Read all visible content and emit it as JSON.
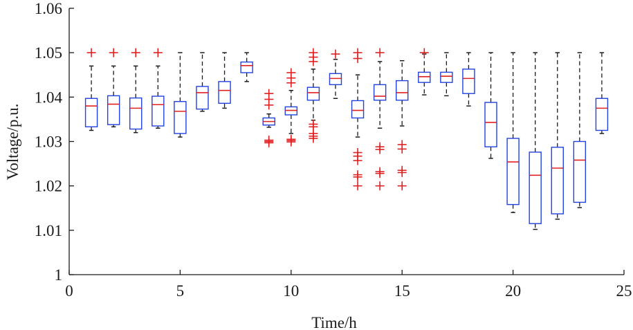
{
  "chart_data": {
    "type": "box",
    "title": "",
    "xlabel": "Time/h",
    "ylabel": "Voltage/p.u.",
    "xlim": [
      0,
      25
    ],
    "ylim": [
      1.0,
      1.06
    ],
    "xticks": [
      0,
      5,
      10,
      15,
      20,
      25
    ],
    "xtick_labels": [
      "0",
      "5",
      "10",
      "15",
      "20",
      "25"
    ],
    "yticks": [
      1.0,
      1.01,
      1.02,
      1.03,
      1.04,
      1.05,
      1.06
    ],
    "ytick_labels": [
      "1",
      "1.01",
      "1.02",
      "1.03",
      "1.04",
      "1.05",
      "1.06"
    ],
    "colors": {
      "box": "#2040e0",
      "median": "#e02020",
      "whisker": "#1a1a1a",
      "outlier": "#e02020",
      "axis": "#1a1a1a"
    },
    "boxes": [
      {
        "x": 1,
        "whisker_low": 1.0325,
        "q1": 1.0333,
        "median": 1.038,
        "q3": 1.0397,
        "whisker_high": 1.047,
        "outliers": [
          1.05
        ]
      },
      {
        "x": 2,
        "whisker_low": 1.0333,
        "q1": 1.0338,
        "median": 1.0384,
        "q3": 1.0403,
        "whisker_high": 1.047,
        "outliers": [
          1.05
        ]
      },
      {
        "x": 3,
        "whisker_low": 1.032,
        "q1": 1.0328,
        "median": 1.0375,
        "q3": 1.0398,
        "whisker_high": 1.047,
        "outliers": [
          1.05
        ]
      },
      {
        "x": 4,
        "whisker_low": 1.033,
        "q1": 1.0335,
        "median": 1.0383,
        "q3": 1.0402,
        "whisker_high": 1.047,
        "outliers": [
          1.05
        ]
      },
      {
        "x": 5,
        "whisker_low": 1.031,
        "q1": 1.0318,
        "median": 1.0368,
        "q3": 1.039,
        "whisker_high": 1.05,
        "outliers": []
      },
      {
        "x": 6,
        "whisker_low": 1.0368,
        "q1": 1.0373,
        "median": 1.041,
        "q3": 1.0424,
        "whisker_high": 1.05,
        "outliers": []
      },
      {
        "x": 7,
        "whisker_low": 1.0375,
        "q1": 1.0386,
        "median": 1.0415,
        "q3": 1.0435,
        "whisker_high": 1.05,
        "outliers": []
      },
      {
        "x": 8,
        "whisker_low": 1.0435,
        "q1": 1.0455,
        "median": 1.0471,
        "q3": 1.0479,
        "whisker_high": 1.05,
        "outliers": []
      },
      {
        "x": 9,
        "whisker_low": 1.0332,
        "q1": 1.0337,
        "median": 1.0345,
        "q3": 1.0353,
        "whisker_high": 1.0362,
        "outliers": [
          1.0408,
          1.0395,
          1.0382,
          1.0303,
          1.03,
          1.0297
        ]
      },
      {
        "x": 10,
        "whisker_low": 1.0318,
        "q1": 1.036,
        "median": 1.037,
        "q3": 1.0378,
        "whisker_high": 1.0415,
        "outliers": [
          1.0455,
          1.0443,
          1.0432,
          1.0305,
          1.0302,
          1.0299
        ]
      },
      {
        "x": 11,
        "whisker_low": 1.0348,
        "q1": 1.0393,
        "median": 1.041,
        "q3": 1.0422,
        "whisker_high": 1.0463,
        "outliers": [
          1.05,
          1.049,
          1.048,
          1.0339,
          1.0333,
          1.0318,
          1.0312,
          1.0307
        ]
      },
      {
        "x": 12,
        "whisker_low": 1.0397,
        "q1": 1.0428,
        "median": 1.0442,
        "q3": 1.0453,
        "whisker_high": 1.0485,
        "outliers": [
          1.0497
        ]
      },
      {
        "x": 13,
        "whisker_low": 1.031,
        "q1": 1.0353,
        "median": 1.037,
        "q3": 1.0392,
        "whisker_high": 1.045,
        "outliers": [
          1.05,
          1.0487,
          1.0275,
          1.0267,
          1.0257,
          1.0225,
          1.022,
          1.02
        ]
      },
      {
        "x": 14,
        "whisker_low": 1.033,
        "q1": 1.0393,
        "median": 1.0402,
        "q3": 1.0428,
        "whisker_high": 1.048,
        "outliers": [
          1.05,
          1.0288,
          1.0282,
          1.0232,
          1.0228,
          1.02
        ]
      },
      {
        "x": 15,
        "whisker_low": 1.0335,
        "q1": 1.0393,
        "median": 1.041,
        "q3": 1.0437,
        "whisker_high": 1.0482,
        "outliers": [
          1.0293,
          1.0283,
          1.0235,
          1.023,
          1.02
        ]
      },
      {
        "x": 16,
        "whisker_low": 1.0405,
        "q1": 1.0433,
        "median": 1.0446,
        "q3": 1.0456,
        "whisker_high": 1.0497,
        "outliers": [
          1.05
        ]
      },
      {
        "x": 17,
        "whisker_low": 1.0403,
        "q1": 1.0433,
        "median": 1.0447,
        "q3": 1.0456,
        "whisker_high": 1.05,
        "outliers": []
      },
      {
        "x": 18,
        "whisker_low": 1.038,
        "q1": 1.0408,
        "median": 1.0442,
        "q3": 1.0463,
        "whisker_high": 1.05,
        "outliers": []
      },
      {
        "x": 19,
        "whisker_low": 1.0262,
        "q1": 1.0288,
        "median": 1.0343,
        "q3": 1.0388,
        "whisker_high": 1.05,
        "outliers": []
      },
      {
        "x": 20,
        "whisker_low": 1.014,
        "q1": 1.0158,
        "median": 1.0254,
        "q3": 1.0307,
        "whisker_high": 1.05,
        "outliers": []
      },
      {
        "x": 21,
        "whisker_low": 1.0102,
        "q1": 1.0115,
        "median": 1.0224,
        "q3": 1.0276,
        "whisker_high": 1.05,
        "outliers": []
      },
      {
        "x": 22,
        "whisker_low": 1.0125,
        "q1": 1.0137,
        "median": 1.024,
        "q3": 1.0287,
        "whisker_high": 1.05,
        "outliers": []
      },
      {
        "x": 23,
        "whisker_low": 1.0151,
        "q1": 1.0163,
        "median": 1.0258,
        "q3": 1.03,
        "whisker_high": 1.05,
        "outliers": []
      },
      {
        "x": 24,
        "whisker_low": 1.0318,
        "q1": 1.0325,
        "median": 1.0375,
        "q3": 1.0397,
        "whisker_high": 1.05,
        "outliers": []
      }
    ]
  }
}
